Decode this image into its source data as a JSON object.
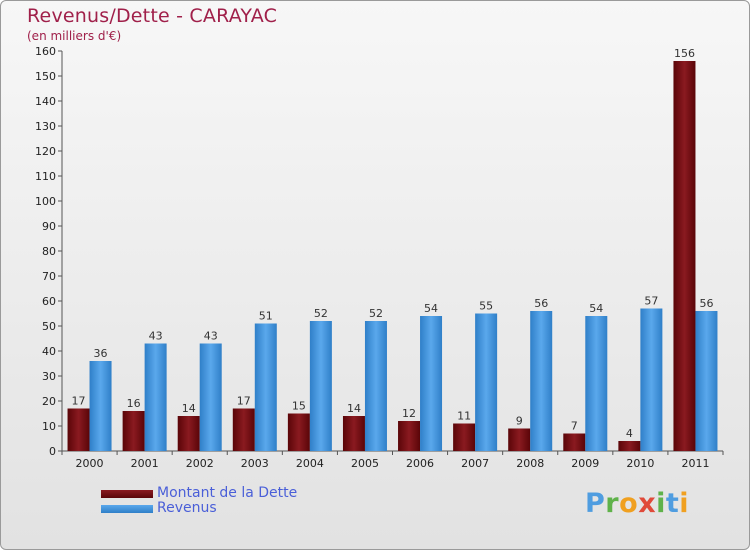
{
  "title": "Revenus/Dette - CARAYAC",
  "subtitle": "(en milliers d'€)",
  "chart_data": {
    "type": "bar",
    "categories": [
      "2000",
      "2001",
      "2002",
      "2003",
      "2004",
      "2005",
      "2006",
      "2007",
      "2008",
      "2009",
      "2010",
      "2011"
    ],
    "series": [
      {
        "name": "Montant de la Dette",
        "values": [
          17,
          16,
          14,
          17,
          15,
          14,
          12,
          11,
          9,
          7,
          4,
          156
        ],
        "color": "#6e0a0e"
      },
      {
        "name": "Revenus",
        "values": [
          36,
          43,
          43,
          51,
          52,
          52,
          54,
          55,
          56,
          54,
          57,
          56
        ],
        "color": "#3c8fd8"
      }
    ],
    "ylim": [
      0,
      160
    ],
    "yticks": [
      0,
      10,
      20,
      30,
      40,
      50,
      60,
      70,
      80,
      90,
      100,
      110,
      120,
      130,
      140,
      150,
      160
    ],
    "xlabel": "",
    "ylabel": ""
  },
  "legend": {
    "items": [
      {
        "label": "Montant de la Dette",
        "color": "#6e0a0e"
      },
      {
        "label": "Revenus",
        "color": "#3c8fd8"
      }
    ]
  },
  "logo": {
    "text": "Proxiti",
    "letters": [
      "P",
      "r",
      "o",
      "x",
      "i",
      "t",
      "i"
    ]
  }
}
